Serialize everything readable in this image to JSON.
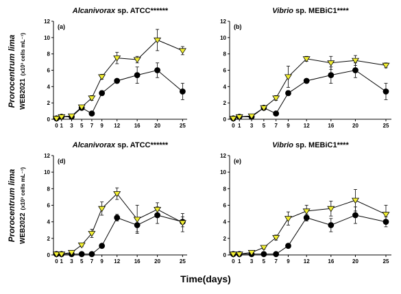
{
  "figure": {
    "xlabel": "Time(days)",
    "rows": [
      {
        "ylabel_species": "Prorocentrum lima",
        "ylabel_strain": "WEB2021",
        "ylabel_unit": "(x10³ cells mL⁻¹)"
      },
      {
        "ylabel_species": "Prorocentrum lima",
        "ylabel_strain": "WEB2022",
        "ylabel_unit": "(x10³ cells mL⁻¹)"
      }
    ],
    "colors": {
      "triangle_fill": "#f2ef33",
      "circle_fill": "#000000",
      "line": "#000000"
    }
  },
  "chart_data": [
    {
      "type": "line",
      "panel_label": "(a)",
      "title_italic": "Alcanivorax",
      "title_rest": " sp. ATCC******",
      "x": [
        0,
        1,
        3,
        5,
        7,
        9,
        12,
        16,
        20,
        25
      ],
      "xticks": [
        0,
        1,
        3,
        5,
        7,
        9,
        12,
        16,
        20,
        25
      ],
      "yticks": [
        0,
        2,
        4,
        6,
        8,
        10,
        12
      ],
      "ylim": [
        0,
        12
      ],
      "series": [
        {
          "marker": "triangle",
          "values": [
            0.1,
            0.3,
            0.4,
            1.5,
            2.6,
            5.2,
            7.5,
            7.3,
            9.7,
            8.4
          ],
          "errors": [
            0.1,
            0.1,
            0.1,
            0.2,
            0.3,
            0.3,
            0.7,
            0.4,
            1.3,
            0.5
          ]
        },
        {
          "marker": "circle",
          "values": [
            0.1,
            0.3,
            0.3,
            1.4,
            0.7,
            3.2,
            4.7,
            5.4,
            6.0,
            3.4
          ],
          "errors": [
            0.1,
            0.1,
            0.1,
            0.2,
            0.2,
            0.3,
            0.2,
            1.0,
            0.9,
            1.0
          ]
        }
      ]
    },
    {
      "type": "line",
      "panel_label": "(b)",
      "title_italic": "Vibrio",
      "title_rest": " sp. MEBiC1****",
      "x": [
        0,
        1,
        3,
        5,
        7,
        9,
        12,
        16,
        20,
        25
      ],
      "xticks": [
        0,
        1,
        3,
        5,
        7,
        9,
        12,
        16,
        20,
        25
      ],
      "yticks": [
        0,
        2,
        4,
        6,
        8,
        10,
        12
      ],
      "ylim": [
        0,
        12
      ],
      "series": [
        {
          "marker": "triangle",
          "values": [
            0.1,
            0.3,
            0.4,
            1.4,
            2.6,
            5.2,
            7.4,
            6.9,
            7.2,
            6.6
          ],
          "errors": [
            0.1,
            0.1,
            0.1,
            0.2,
            0.3,
            1.3,
            0.3,
            0.8,
            0.6,
            0.3
          ]
        },
        {
          "marker": "circle",
          "values": [
            0.1,
            0.3,
            0.3,
            1.4,
            0.7,
            3.2,
            4.7,
            5.4,
            6.0,
            3.4
          ],
          "errors": [
            0.1,
            0.1,
            0.1,
            0.2,
            0.2,
            0.3,
            0.2,
            1.0,
            0.9,
            1.0
          ]
        }
      ]
    },
    {
      "type": "line",
      "panel_label": "(d)",
      "title_italic": "Alcanivorax",
      "title_rest": " sp. ATCC******",
      "x": [
        0,
        1,
        3,
        5,
        7,
        9,
        12,
        16,
        20,
        25
      ],
      "xticks": [
        0,
        1,
        3,
        5,
        7,
        9,
        12,
        16,
        20,
        25
      ],
      "yticks": [
        0,
        2,
        4,
        6,
        8,
        10,
        12
      ],
      "ylim": [
        0,
        12
      ],
      "series": [
        {
          "marker": "triangle",
          "values": [
            0.1,
            0.1,
            0.3,
            1.2,
            2.6,
            5.6,
            7.4,
            4.3,
            5.5,
            3.9
          ],
          "errors": [
            0.1,
            0.1,
            0.1,
            0.2,
            0.5,
            0.8,
            0.7,
            1.7,
            0.8,
            1.1
          ]
        },
        {
          "marker": "circle",
          "values": [
            0.1,
            0.1,
            0.1,
            0.1,
            0.1,
            1.1,
            4.5,
            3.6,
            4.8,
            4.0
          ],
          "errors": [
            0.1,
            0.1,
            0.1,
            0.1,
            0.1,
            0.2,
            0.4,
            0.8,
            1.0,
            0.6
          ]
        }
      ]
    },
    {
      "type": "line",
      "panel_label": "(e)",
      "title_italic": "Vibrio",
      "title_rest": " sp. MEBiC1****",
      "x": [
        0,
        1,
        3,
        5,
        7,
        9,
        12,
        16,
        20,
        25
      ],
      "xticks": [
        0,
        1,
        3,
        5,
        7,
        9,
        12,
        16,
        20,
        25
      ],
      "yticks": [
        0,
        2,
        4,
        6,
        8,
        10,
        12
      ],
      "ylim": [
        0,
        12
      ],
      "series": [
        {
          "marker": "triangle",
          "values": [
            0.1,
            0.1,
            0.3,
            0.9,
            2.1,
            4.4,
            5.3,
            5.6,
            6.6,
            4.9
          ],
          "errors": [
            0.1,
            0.1,
            0.1,
            0.2,
            0.3,
            0.8,
            0.7,
            0.9,
            1.3,
            1.1
          ]
        },
        {
          "marker": "circle",
          "values": [
            0.1,
            0.1,
            0.1,
            0.1,
            0.1,
            1.1,
            4.5,
            3.6,
            4.8,
            4.0
          ],
          "errors": [
            0.1,
            0.1,
            0.1,
            0.1,
            0.1,
            0.2,
            0.4,
            0.8,
            1.0,
            0.6
          ]
        }
      ]
    }
  ]
}
